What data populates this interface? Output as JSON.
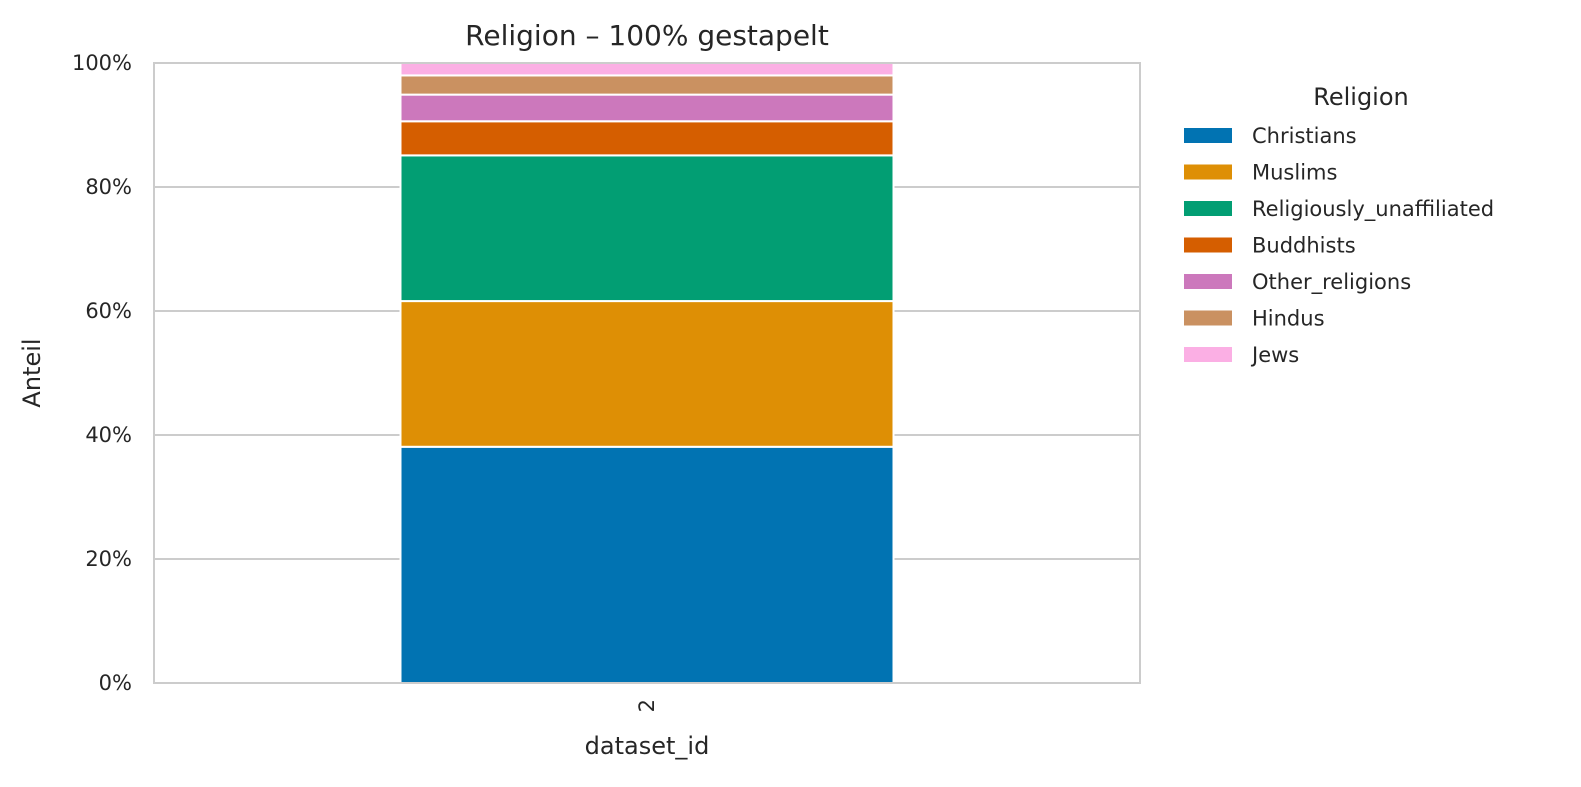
{
  "chart_data": {
    "type": "bar",
    "stacked": true,
    "normalized": true,
    "title": "Religion – 100% gestapelt",
    "xlabel": "dataset_id",
    "ylabel": "Anteil",
    "categories": [
      "2"
    ],
    "ylim": [
      0,
      100
    ],
    "yticks": [
      "0%",
      "20%",
      "40%",
      "60%",
      "80%",
      "100%"
    ],
    "grid": true,
    "legend": {
      "title": "Religion",
      "placement": "outside-right"
    },
    "series": [
      {
        "name": "Christians",
        "values": [
          38.1
        ],
        "color": "#0173b2"
      },
      {
        "name": "Muslims",
        "values": [
          23.5
        ],
        "color": "#de8f05"
      },
      {
        "name": "Religiously_unaffiliated",
        "values": [
          23.5
        ],
        "color": "#029e73"
      },
      {
        "name": "Buddhists",
        "values": [
          5.5
        ],
        "color": "#d55e00"
      },
      {
        "name": "Other_religions",
        "values": [
          4.3
        ],
        "color": "#cc78bc"
      },
      {
        "name": "Hindus",
        "values": [
          3.1
        ],
        "color": "#ca9161"
      },
      {
        "name": "Jews",
        "values": [
          2.0
        ],
        "color": "#fbafe4"
      }
    ]
  }
}
